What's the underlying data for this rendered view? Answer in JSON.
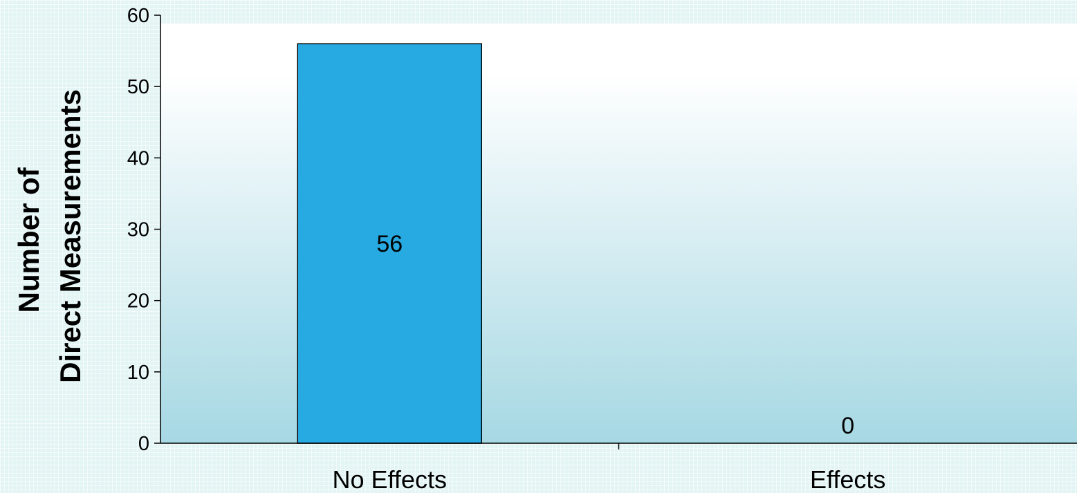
{
  "chart_data": {
    "type": "bar",
    "categories": [
      "No Effects",
      "Effects"
    ],
    "values": [
      56,
      0
    ],
    "data_labels": [
      "56",
      "0"
    ],
    "title": "",
    "xlabel": "",
    "ylabel_lines": [
      "Number of",
      "Direct Measurements"
    ],
    "ylim": [
      0,
      60
    ],
    "yticks": [
      0,
      10,
      20,
      30,
      40,
      50,
      60
    ],
    "ytick_labels": [
      "0",
      "10",
      "20",
      "30",
      "40",
      "50",
      "60"
    ],
    "grid": false,
    "legend": "none"
  },
  "colors": {
    "bar": "#27a9e1",
    "bar_outline": "#000000",
    "plot_top": "#ffffff",
    "plot_bottom": "#a6d8e3",
    "page_background": "#e3f4f4",
    "axis": "#000000"
  }
}
